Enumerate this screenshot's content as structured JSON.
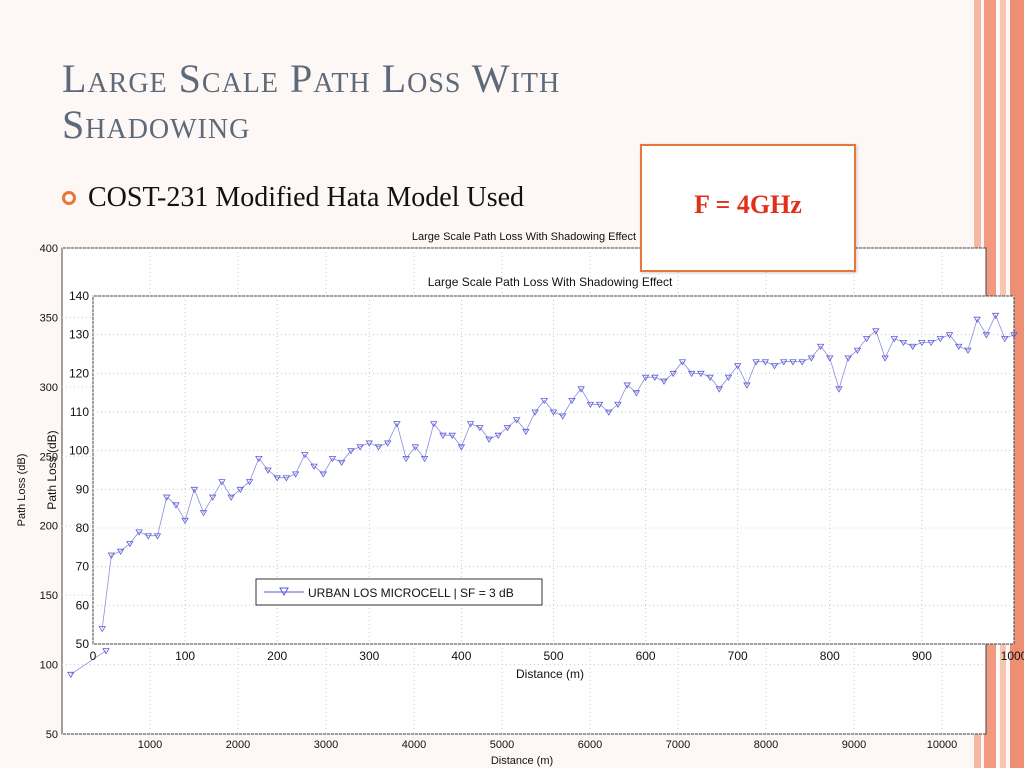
{
  "slide": {
    "title_line1": "Large Scale Path Loss With",
    "title_line2": "Shadowing",
    "bullet": "COST-231 Modified Hata Model Used",
    "freq_label": "F = 4GHz"
  },
  "colors": {
    "accent": "#e8763a",
    "title": "#5d6a7a",
    "freq_text": "#e0301a",
    "series": "#5b5bd6",
    "stripes": [
      "#f6b8a2",
      "#f19a7f",
      "#f7c6b3",
      "#ee8e72"
    ]
  },
  "chart_data": [
    {
      "type": "line",
      "title": "Large Scale Path Loss With Shadowing Effect",
      "xlabel": "Distance (m)",
      "ylabel": "Path Loss (dB)",
      "xlim": [
        0,
        10500
      ],
      "ylim": [
        50,
        400
      ],
      "xticks": [
        1000,
        2000,
        3000,
        4000,
        5000,
        6000,
        7000,
        8000,
        9000,
        10000
      ],
      "yticks": [
        50,
        100,
        150,
        200,
        250,
        300,
        350,
        400
      ],
      "grid": true,
      "series": [
        {
          "x": [
            100,
            500
          ],
          "y": [
            93,
            110
          ]
        }
      ]
    },
    {
      "type": "line",
      "title": "Large Scale Path Loss With Shadowing Effect",
      "xlabel": "Distance (m)",
      "ylabel": "Path Loss (dB)",
      "xlim": [
        0,
        1000
      ],
      "ylim": [
        50,
        140
      ],
      "xticks": [
        0,
        100,
        200,
        300,
        400,
        500,
        600,
        700,
        800,
        900,
        1000
      ],
      "yticks": [
        50,
        60,
        70,
        80,
        90,
        100,
        110,
        120,
        130,
        140
      ],
      "grid": true,
      "legend_position": "lower-center",
      "series": [
        {
          "name": "URBAN LOS MICROCELL | SF = 3 dB",
          "x": [
            10,
            20,
            30,
            40,
            50,
            60,
            70,
            80,
            90,
            100,
            110,
            120,
            130,
            140,
            150,
            160,
            170,
            180,
            190,
            200,
            210,
            220,
            230,
            240,
            250,
            260,
            270,
            280,
            290,
            300,
            310,
            320,
            330,
            340,
            350,
            360,
            370,
            380,
            390,
            400,
            410,
            420,
            430,
            440,
            450,
            460,
            470,
            480,
            490,
            500,
            510,
            520,
            530,
            540,
            550,
            560,
            570,
            580,
            590,
            600,
            610,
            620,
            630,
            640,
            650,
            660,
            670,
            680,
            690,
            700,
            710,
            720,
            730,
            740,
            750,
            760,
            770,
            780,
            790,
            800,
            810,
            820,
            830,
            840,
            850,
            860,
            870,
            880,
            890,
            900,
            910,
            920,
            930,
            940,
            950,
            960,
            970,
            980,
            990,
            1000
          ],
          "y": [
            54,
            73,
            74,
            76,
            79,
            78,
            78,
            88,
            86,
            82,
            90,
            84,
            88,
            92,
            88,
            90,
            92,
            98,
            95,
            93,
            93,
            94,
            99,
            96,
            94,
            98,
            97,
            100,
            101,
            102,
            101,
            102,
            107,
            98,
            101,
            98,
            107,
            104,
            104,
            101,
            107,
            106,
            103,
            104,
            106,
            108,
            105,
            110,
            113,
            110,
            109,
            113,
            116,
            112,
            112,
            110,
            112,
            117,
            115,
            119,
            119,
            118,
            120,
            123,
            120,
            120,
            119,
            116,
            119,
            122,
            117,
            123,
            123,
            122,
            123,
            123,
            123,
            124,
            127,
            124,
            116,
            124,
            126,
            129,
            131,
            124,
            129,
            128,
            127,
            128,
            128,
            129,
            130,
            127,
            126,
            134,
            130,
            135,
            129,
            130
          ]
        }
      ]
    }
  ]
}
